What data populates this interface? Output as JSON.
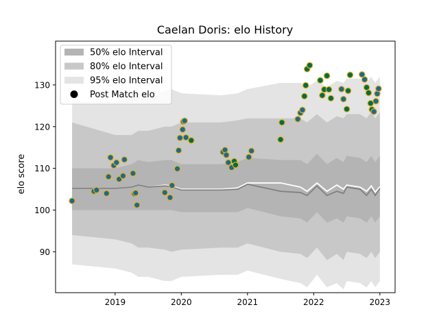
{
  "chart_data": {
    "type": "scatter",
    "title": "Caelan Doris: elo History",
    "xlabel": "",
    "ylabel": "elo score",
    "xlim": [
      2018.1,
      2023.23
    ],
    "ylim": [
      80.2,
      140.5
    ],
    "x_ticks": [
      {
        "value": 2019,
        "label": "2019"
      },
      {
        "value": 2020,
        "label": "2020"
      },
      {
        "value": 2021,
        "label": "2021"
      },
      {
        "value": 2022,
        "label": "2022"
      },
      {
        "value": 2023,
        "label": "2023"
      }
    ],
    "y_ticks": [
      {
        "value": 90,
        "label": "90"
      },
      {
        "value": 100,
        "label": "100"
      },
      {
        "value": 110,
        "label": "110"
      },
      {
        "value": 120,
        "label": "120"
      },
      {
        "value": 130,
        "label": "130"
      }
    ],
    "grid": false,
    "legend_position": "top-left",
    "legend": [
      {
        "label": "50% elo Interval",
        "swatch": "#b4b4b4",
        "kind": "box"
      },
      {
        "label": "80% elo Interval",
        "swatch": "#c8c8c8",
        "kind": "box"
      },
      {
        "label": "95% elo Interval",
        "swatch": "#e4e4e4",
        "kind": "box"
      },
      {
        "label": "Post Match elo",
        "swatch": "#000000",
        "kind": "dot"
      }
    ],
    "colors": {
      "band95": "#e4e4e4",
      "band80": "#c8c8c8",
      "band50": "#b4b4b4",
      "mean_line": "#ffffff",
      "median_line": "#808080",
      "point_loss": "#1e6a8a",
      "point_win": "#006d42",
      "point_edge": "#e8b020"
    },
    "intervals": [
      {
        "x": 2018.35,
        "mean": 105.2,
        "median": 105.2,
        "lo50": 100.0,
        "hi50": 110.0,
        "lo80": 94.0,
        "hi80": 121.0,
        "lo95": 87.0,
        "hi95": 126.0
      },
      {
        "x": 2019.0,
        "mean": 105.2,
        "median": 105.2,
        "lo50": 100.0,
        "hi50": 110.0,
        "lo80": 93.0,
        "hi80": 118.0,
        "lo95": 86.0,
        "hi95": 126.0
      },
      {
        "x": 2019.25,
        "mean": 105.5,
        "median": 105.5,
        "lo50": 100.0,
        "hi50": 111.0,
        "lo80": 92.0,
        "hi80": 118.0,
        "lo95": 85.0,
        "hi95": 127.0
      },
      {
        "x": 2019.35,
        "mean": 106.0,
        "median": 106.0,
        "lo50": 100.0,
        "hi50": 112.0,
        "lo80": 91.0,
        "hi80": 119.0,
        "lo95": 84.0,
        "hi95": 128.0
      },
      {
        "x": 2019.5,
        "mean": 105.5,
        "median": 105.5,
        "lo50": 100.0,
        "hi50": 111.5,
        "lo80": 91.0,
        "hi80": 119.0,
        "lo95": 84.0,
        "hi95": 128.0
      },
      {
        "x": 2019.75,
        "mean": 106.0,
        "median": 105.8,
        "lo50": 100.0,
        "hi50": 112.0,
        "lo80": 90.5,
        "hi80": 120.0,
        "lo95": 83.0,
        "hi95": 128.5
      },
      {
        "x": 2019.85,
        "mean": 105.8,
        "median": 105.6,
        "lo50": 100.0,
        "hi50": 112.0,
        "lo80": 90.0,
        "hi80": 120.0,
        "lo95": 83.0,
        "hi95": 129.0
      },
      {
        "x": 2020.0,
        "mean": 105.0,
        "median": 104.8,
        "lo50": 99.5,
        "hi50": 111.0,
        "lo80": 90.5,
        "hi80": 121.0,
        "lo95": 84.0,
        "hi95": 128.0
      },
      {
        "x": 2020.6,
        "mean": 105.0,
        "median": 104.8,
        "lo50": 99.5,
        "hi50": 111.0,
        "lo80": 91.0,
        "hi80": 121.0,
        "lo95": 84.5,
        "hi95": 127.5
      },
      {
        "x": 2020.85,
        "mean": 105.3,
        "median": 105.0,
        "lo50": 99.5,
        "hi50": 111.5,
        "lo80": 91.0,
        "hi80": 121.5,
        "lo95": 84.5,
        "hi95": 128.0
      },
      {
        "x": 2021.0,
        "mean": 106.5,
        "median": 106.2,
        "lo50": 100.5,
        "hi50": 112.5,
        "lo80": 92.0,
        "hi80": 122.0,
        "lo95": 85.5,
        "hi95": 129.0
      },
      {
        "x": 2021.5,
        "mean": 106.5,
        "median": 104.5,
        "lo50": 98.5,
        "hi50": 112.0,
        "lo80": 90.0,
        "hi80": 122.0,
        "lo95": 83.5,
        "hi95": 130.5
      },
      {
        "x": 2021.8,
        "mean": 105.5,
        "median": 104.2,
        "lo50": 98.0,
        "hi50": 112.0,
        "lo80": 89.5,
        "hi80": 122.0,
        "lo95": 82.5,
        "hi95": 130.5
      },
      {
        "x": 2021.9,
        "mean": 104.5,
        "median": 103.5,
        "lo50": 97.0,
        "hi50": 111.0,
        "lo80": 88.5,
        "hi80": 121.0,
        "lo95": 81.5,
        "hi95": 129.5
      },
      {
        "x": 2022.05,
        "mean": 106.5,
        "median": 105.8,
        "lo50": 99.5,
        "hi50": 113.5,
        "lo80": 91.0,
        "hi80": 123.0,
        "lo95": 84.5,
        "hi95": 131.0
      },
      {
        "x": 2022.2,
        "mean": 104.5,
        "median": 103.5,
        "lo50": 97.0,
        "hi50": 111.0,
        "lo80": 88.0,
        "hi80": 121.0,
        "lo95": 81.5,
        "hi95": 129.5
      },
      {
        "x": 2022.35,
        "mean": 106.0,
        "median": 104.5,
        "lo50": 98.0,
        "hi50": 112.5,
        "lo80": 89.5,
        "hi80": 122.5,
        "lo95": 82.5,
        "hi95": 131.0
      },
      {
        "x": 2022.45,
        "mean": 105.0,
        "median": 104.0,
        "lo50": 97.0,
        "hi50": 111.5,
        "lo80": 88.0,
        "hi80": 122.0,
        "lo95": 81.0,
        "hi95": 130.5
      },
      {
        "x": 2022.5,
        "mean": 106.0,
        "median": 105.5,
        "lo50": 98.5,
        "hi50": 113.0,
        "lo80": 90.0,
        "hi80": 123.0,
        "lo95": 83.0,
        "hi95": 131.5
      },
      {
        "x": 2022.7,
        "mean": 105.5,
        "median": 105.0,
        "lo50": 98.0,
        "hi50": 112.5,
        "lo80": 89.5,
        "hi80": 123.0,
        "lo95": 82.5,
        "hi95": 131.5
      },
      {
        "x": 2022.8,
        "mean": 104.5,
        "median": 103.5,
        "lo50": 97.0,
        "hi50": 111.5,
        "lo80": 88.5,
        "hi80": 122.0,
        "lo95": 81.5,
        "hi95": 130.5
      },
      {
        "x": 2022.87,
        "mean": 105.8,
        "median": 105.0,
        "lo50": 98.5,
        "hi50": 113.0,
        "lo80": 90.0,
        "hi80": 123.5,
        "lo95": 83.0,
        "hi95": 132.0
      },
      {
        "x": 2022.93,
        "mean": 104.3,
        "median": 103.5,
        "lo50": 97.0,
        "hi50": 111.5,
        "lo80": 88.5,
        "hi80": 122.0,
        "lo95": 81.5,
        "hi95": 130.5
      },
      {
        "x": 2023.0,
        "mean": 105.6,
        "median": 105.2,
        "lo50": 98.5,
        "hi50": 113.0,
        "lo80": 90.0,
        "hi80": 123.5,
        "lo95": 83.0,
        "hi95": 132.0
      }
    ],
    "points": [
      {
        "x": 2018.35,
        "y": 102.2,
        "result": "loss"
      },
      {
        "x": 2018.68,
        "y": 104.5,
        "result": "loss"
      },
      {
        "x": 2018.72,
        "y": 104.8,
        "result": "loss"
      },
      {
        "x": 2018.87,
        "y": 104.0,
        "result": "loss"
      },
      {
        "x": 2018.9,
        "y": 108.0,
        "result": "loss"
      },
      {
        "x": 2018.93,
        "y": 112.6,
        "result": "loss"
      },
      {
        "x": 2018.98,
        "y": 110.7,
        "result": "loss"
      },
      {
        "x": 2019.02,
        "y": 111.4,
        "result": "loss"
      },
      {
        "x": 2019.06,
        "y": 107.4,
        "result": "loss"
      },
      {
        "x": 2019.12,
        "y": 108.2,
        "result": "loss"
      },
      {
        "x": 2019.14,
        "y": 112.1,
        "result": "loss"
      },
      {
        "x": 2019.27,
        "y": 108.8,
        "result": "loss"
      },
      {
        "x": 2019.29,
        "y": 103.9,
        "result": "loss"
      },
      {
        "x": 2019.31,
        "y": 104.1,
        "result": "loss"
      },
      {
        "x": 2019.33,
        "y": 101.2,
        "result": "loss"
      },
      {
        "x": 2019.75,
        "y": 104.2,
        "result": "loss"
      },
      {
        "x": 2019.83,
        "y": 103.0,
        "result": "loss"
      },
      {
        "x": 2019.86,
        "y": 105.9,
        "result": "loss"
      },
      {
        "x": 2019.94,
        "y": 109.9,
        "result": "loss"
      },
      {
        "x": 2019.96,
        "y": 114.3,
        "result": "loss"
      },
      {
        "x": 2019.98,
        "y": 117.3,
        "result": "loss"
      },
      {
        "x": 2020.02,
        "y": 119.3,
        "result": "loss"
      },
      {
        "x": 2020.03,
        "y": 121.2,
        "result": "loss"
      },
      {
        "x": 2020.05,
        "y": 121.4,
        "result": "loss"
      },
      {
        "x": 2020.07,
        "y": 117.4,
        "result": "loss"
      },
      {
        "x": 2020.15,
        "y": 116.7,
        "result": "win"
      },
      {
        "x": 2020.63,
        "y": 113.9,
        "result": "loss"
      },
      {
        "x": 2020.66,
        "y": 114.4,
        "result": "loss"
      },
      {
        "x": 2020.68,
        "y": 113.2,
        "result": "loss"
      },
      {
        "x": 2020.71,
        "y": 111.4,
        "result": "loss"
      },
      {
        "x": 2020.76,
        "y": 110.2,
        "result": "loss"
      },
      {
        "x": 2020.8,
        "y": 111.7,
        "result": "win"
      },
      {
        "x": 2020.82,
        "y": 110.8,
        "result": "win"
      },
      {
        "x": 2021.02,
        "y": 112.7,
        "result": "loss"
      },
      {
        "x": 2021.06,
        "y": 114.2,
        "result": "loss"
      },
      {
        "x": 2021.5,
        "y": 116.9,
        "result": "win"
      },
      {
        "x": 2021.52,
        "y": 121.0,
        "result": "win"
      },
      {
        "x": 2021.76,
        "y": 121.8,
        "result": "loss"
      },
      {
        "x": 2021.8,
        "y": 123.3,
        "result": "loss"
      },
      {
        "x": 2021.83,
        "y": 124.0,
        "result": "loss"
      },
      {
        "x": 2021.86,
        "y": 127.3,
        "result": "win"
      },
      {
        "x": 2021.88,
        "y": 129.9,
        "result": "win"
      },
      {
        "x": 2021.9,
        "y": 133.8,
        "result": "win"
      },
      {
        "x": 2021.94,
        "y": 134.7,
        "result": "win"
      },
      {
        "x": 2022.1,
        "y": 131.1,
        "result": "win"
      },
      {
        "x": 2022.13,
        "y": 127.5,
        "result": "win"
      },
      {
        "x": 2022.16,
        "y": 128.9,
        "result": "win"
      },
      {
        "x": 2022.2,
        "y": 132.2,
        "result": "win"
      },
      {
        "x": 2022.23,
        "y": 128.9,
        "result": "win"
      },
      {
        "x": 2022.26,
        "y": 126.8,
        "result": "win"
      },
      {
        "x": 2022.42,
        "y": 129.0,
        "result": "loss"
      },
      {
        "x": 2022.45,
        "y": 126.6,
        "result": "loss"
      },
      {
        "x": 2022.5,
        "y": 124.2,
        "result": "win"
      },
      {
        "x": 2022.52,
        "y": 128.6,
        "result": "win"
      },
      {
        "x": 2022.55,
        "y": 132.4,
        "result": "win"
      },
      {
        "x": 2022.73,
        "y": 132.5,
        "result": "loss"
      },
      {
        "x": 2022.77,
        "y": 131.3,
        "result": "loss"
      },
      {
        "x": 2022.8,
        "y": 129.4,
        "result": "win"
      },
      {
        "x": 2022.83,
        "y": 128.1,
        "result": "win"
      },
      {
        "x": 2022.86,
        "y": 125.6,
        "result": "win"
      },
      {
        "x": 2022.88,
        "y": 124.1,
        "result": "win"
      },
      {
        "x": 2022.91,
        "y": 123.6,
        "result": "loss"
      },
      {
        "x": 2022.94,
        "y": 126.1,
        "result": "loss"
      },
      {
        "x": 2022.96,
        "y": 127.9,
        "result": "loss"
      },
      {
        "x": 2022.98,
        "y": 129.1,
        "result": "loss"
      }
    ]
  }
}
